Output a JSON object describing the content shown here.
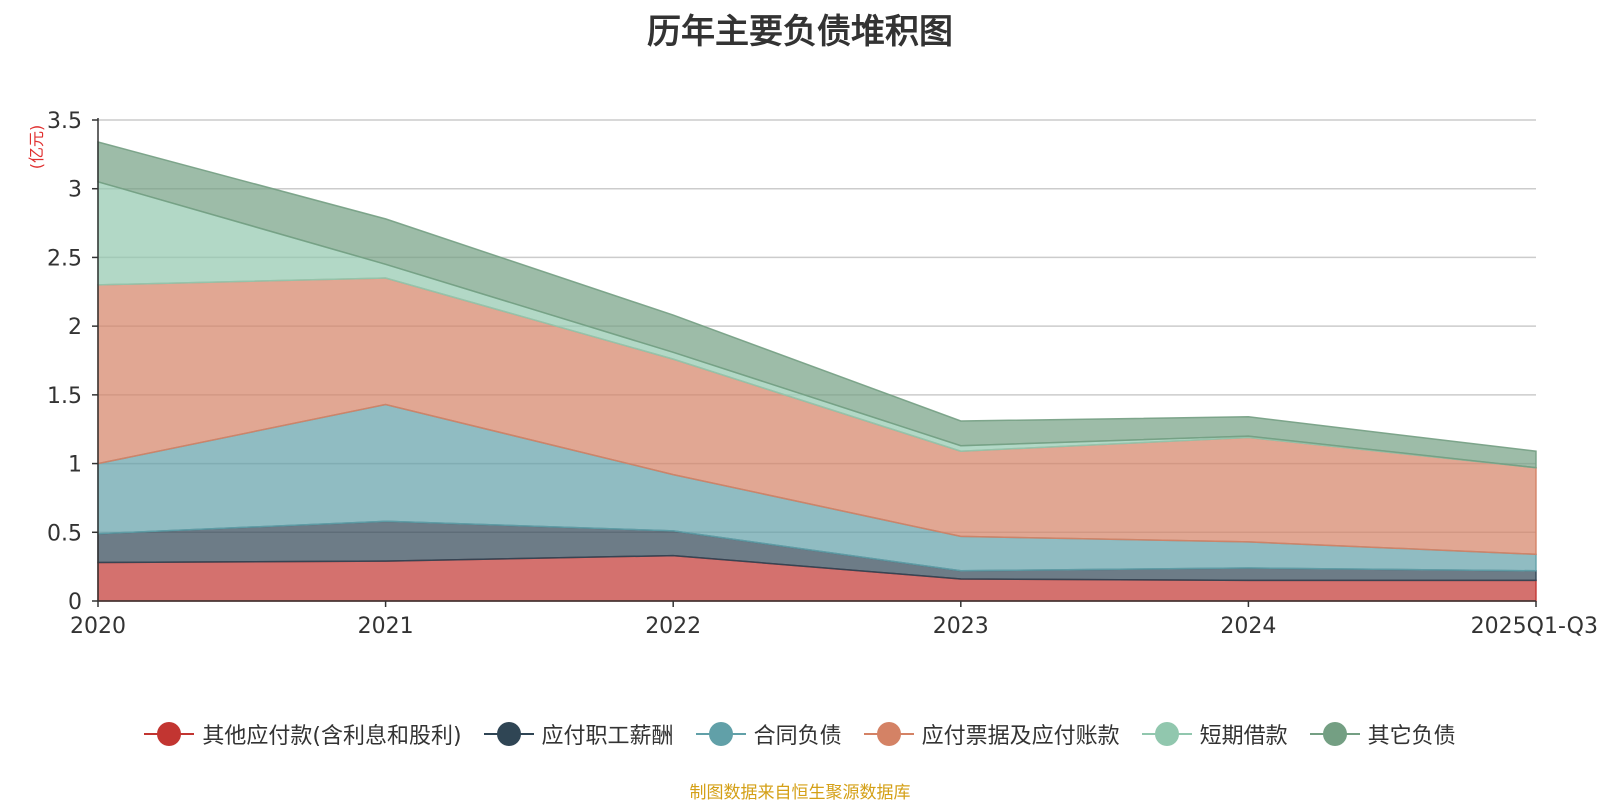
{
  "chart_data": {
    "type": "area",
    "stacked": true,
    "title": "历年主要负债堆积图",
    "ylabel": "(亿元)",
    "categories": [
      "2020",
      "2021",
      "2022",
      "2023",
      "2024",
      "2025Q1-Q3"
    ],
    "ylim": [
      0,
      3.5
    ],
    "yticks": [
      "0",
      "0.5",
      "1",
      "1.5",
      "2",
      "2.5",
      "3",
      "3.5"
    ],
    "grid": true,
    "legend_position": "bottom",
    "series": [
      {
        "name": "其他应付款(含利息和股利)",
        "color": "#c23531",
        "values": [
          0.28,
          0.29,
          0.33,
          0.16,
          0.15,
          0.15
        ]
      },
      {
        "name": "应付职工薪酬",
        "color": "#2f4554",
        "values": [
          0.21,
          0.29,
          0.18,
          0.06,
          0.09,
          0.07
        ]
      },
      {
        "name": "合同负债",
        "color": "#61a0a8",
        "values": [
          0.51,
          0.85,
          0.41,
          0.25,
          0.19,
          0.12
        ]
      },
      {
        "name": "应付票据及应付账款",
        "color": "#d48265",
        "values": [
          1.3,
          0.92,
          0.84,
          0.62,
          0.76,
          0.63
        ]
      },
      {
        "name": "短期借款",
        "color": "#91c7ae",
        "values": [
          0.75,
          0.1,
          0.05,
          0.04,
          0.01,
          0.0
        ]
      },
      {
        "name": "其它负债",
        "color": "#749f83",
        "values": [
          0.29,
          0.33,
          0.27,
          0.18,
          0.14,
          0.12
        ]
      }
    ]
  },
  "source": "制图数据来自恒生聚源数据库"
}
